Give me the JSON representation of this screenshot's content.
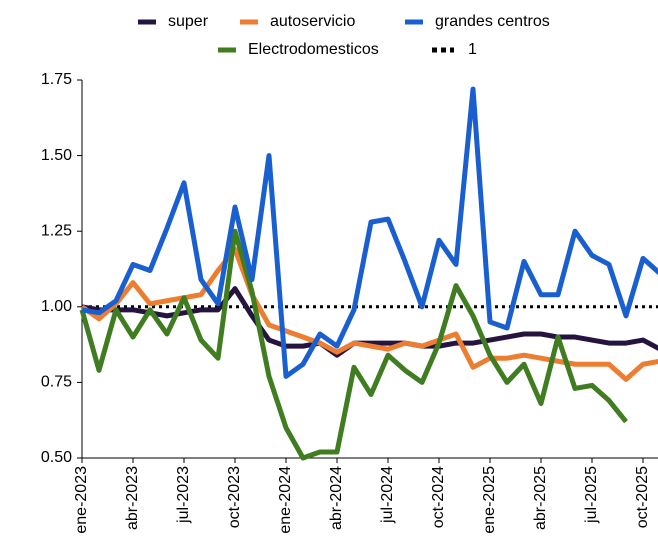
{
  "chart_data": {
    "type": "line",
    "categories": [
      "ene-2023",
      null,
      null,
      "abr-2023",
      null,
      null,
      "jul-2023",
      null,
      null,
      "oct-2023",
      null,
      null,
      "ene-2024",
      null,
      null,
      "abr-2024",
      null,
      null,
      "jul-2024",
      null,
      null,
      "oct-2024",
      null,
      null,
      "ene-2025",
      null,
      null,
      "abr-2025",
      null,
      null,
      "jul-2025",
      null,
      null,
      "oct-2025",
      null
    ],
    "series": [
      {
        "name": "super",
        "color": "#24143f",
        "values": [
          1.0,
          0.99,
          0.99,
          0.99,
          0.98,
          0.97,
          0.98,
          0.99,
          0.99,
          1.06,
          0.97,
          0.89,
          0.87,
          0.87,
          0.88,
          0.84,
          0.88,
          0.88,
          0.88,
          0.88,
          0.87,
          0.87,
          0.88,
          0.88,
          0.89,
          0.9,
          0.91,
          0.91,
          0.9,
          0.9,
          0.89,
          0.88,
          0.88,
          0.89,
          0.86
        ]
      },
      {
        "name": "autoservicio",
        "color": "#ed7d31",
        "values": [
          1.0,
          0.96,
          1.01,
          1.08,
          1.01,
          1.02,
          1.03,
          1.04,
          1.12,
          1.19,
          1.04,
          0.94,
          0.92,
          0.9,
          0.88,
          0.85,
          0.88,
          0.87,
          0.86,
          0.88,
          0.87,
          0.89,
          0.91,
          0.8,
          0.83,
          0.83,
          0.84,
          0.83,
          0.82,
          0.81,
          0.81,
          0.81,
          0.76,
          0.81,
          0.82
        ]
      },
      {
        "name": "grandes centros",
        "color": "#1a5fd0",
        "values": [
          0.99,
          0.98,
          1.02,
          1.14,
          1.12,
          1.26,
          1.41,
          1.09,
          1.01,
          1.33,
          1.09,
          1.5,
          0.77,
          0.81,
          0.91,
          0.87,
          0.99,
          1.28,
          1.29,
          1.15,
          1.0,
          1.22,
          1.14,
          1.72,
          0.95,
          0.93,
          1.15,
          1.04,
          1.04,
          1.25,
          1.17,
          1.14,
          0.97,
          1.16,
          1.11
        ]
      },
      {
        "name": "Electrodomesticos",
        "color": "#3f7d20",
        "values": [
          0.99,
          0.79,
          0.99,
          0.9,
          0.99,
          0.91,
          1.03,
          0.89,
          0.83,
          1.25,
          1.05,
          0.77,
          0.6,
          0.5,
          0.52,
          0.52,
          0.8,
          0.71,
          0.84,
          0.79,
          0.75,
          0.88,
          1.07,
          0.97,
          0.84,
          0.75,
          0.81,
          0.68,
          0.9,
          0.73,
          0.74,
          0.69,
          0.62,
          null,
          null
        ]
      }
    ],
    "reference": {
      "name": "1",
      "value": 1,
      "color": "#000000"
    },
    "ylim": [
      0.5,
      1.75
    ],
    "yticks": [
      {
        "value": 0.5,
        "label": "0.50"
      },
      {
        "value": 0.75,
        "label": "0.75"
      },
      {
        "value": 1,
        "label": "1.00"
      },
      {
        "value": 1.25,
        "label": "1.25"
      },
      {
        "value": 1.5,
        "label": "1.50"
      },
      {
        "value": 1.75,
        "label": "1.75"
      }
    ]
  }
}
